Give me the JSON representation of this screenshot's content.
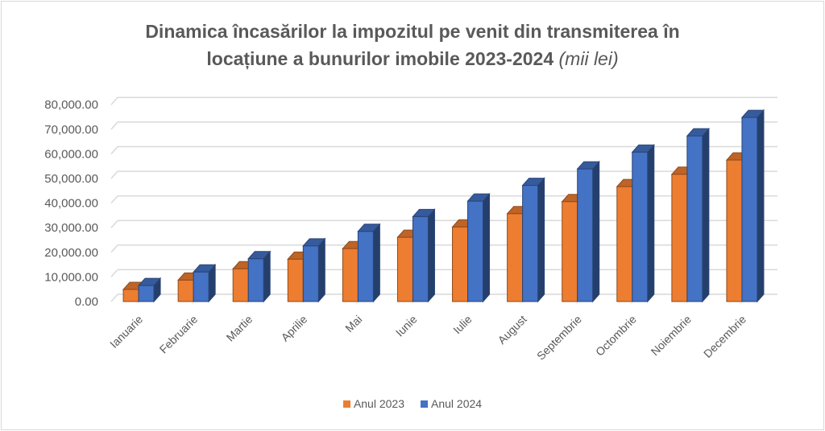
{
  "chart_data": {
    "type": "bar",
    "title": "Dinamica încasărilor la impozitul pe venit din transmiterea în locațiune a bunurilor imobile 2023-2024",
    "title_line1": "Dinamica încasărilor la impozitul pe venit din transmiterea în",
    "title_line2": "locațiune a bunurilor imobile 2023-2024",
    "title_unit": "(mii lei)",
    "categories": [
      "Ianuarie",
      "Februarie",
      "Martie",
      "Aprilie",
      "Mai",
      "Iunie",
      "Iulie",
      "August",
      "Septembrie",
      "Octombrie",
      "Noiembrie",
      "Decembrie"
    ],
    "series": [
      {
        "name": "Anul 2023",
        "color": "#ed7d31",
        "values": [
          4900,
          8700,
          13300,
          17200,
          21500,
          26100,
          30300,
          35700,
          40600,
          46700,
          51700,
          57500
        ]
      },
      {
        "name": "Anul 2024",
        "color": "#4472c4",
        "values": [
          6500,
          12000,
          17400,
          22600,
          28500,
          34500,
          40800,
          47200,
          53900,
          60700,
          67300,
          74800
        ]
      }
    ],
    "ylim": [
      0,
      80000
    ],
    "yticks": [
      "0.00",
      "10,000.00",
      "20,000.00",
      "30,000.00",
      "40,000.00",
      "50,000.00",
      "60,000.00",
      "70,000.00",
      "80,000.00"
    ],
    "grid": true,
    "three_d": true,
    "legend": "bottom"
  }
}
